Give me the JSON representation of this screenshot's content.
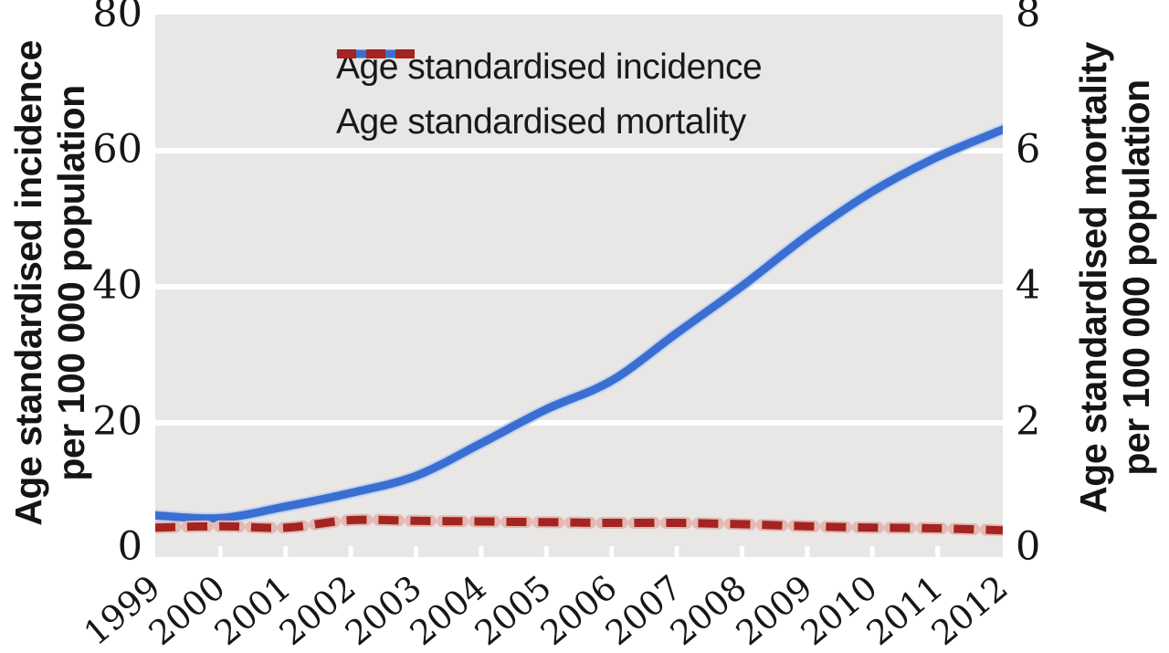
{
  "chart_data": {
    "type": "line",
    "x": [
      1999,
      2000,
      2001,
      2002,
      2003,
      2004,
      2005,
      2006,
      2007,
      2008,
      2009,
      2010,
      2011,
      2012
    ],
    "series": [
      {
        "name": "Age standardised incidence",
        "axis": "left",
        "style": "solid",
        "color": "#3a6fd1",
        "halo_color": "#c3d3f0",
        "values": [
          6.4,
          6.0,
          7.7,
          9.7,
          12.2,
          17.0,
          22.0,
          26.2,
          33.2,
          40.1,
          47.5,
          54.0,
          59.1,
          63.1
        ]
      },
      {
        "name": "Age standardised mortality",
        "axis": "right",
        "style": "dashed",
        "color": "#a32420",
        "halo_color": "#e4b9b4",
        "values": [
          0.46,
          0.48,
          0.46,
          0.57,
          0.56,
          0.55,
          0.54,
          0.53,
          0.53,
          0.51,
          0.48,
          0.46,
          0.45,
          0.42
        ]
      }
    ],
    "left_axis": {
      "title_line1": "Age standardised incidence",
      "title_line2": "per 100 000 population",
      "ticks": [
        0,
        20,
        40,
        60,
        80
      ],
      "range": [
        0,
        80
      ]
    },
    "right_axis": {
      "title_line1": "Age standardised mortality",
      "title_line2": "per 100 000 population",
      "ticks": [
        0,
        2,
        4,
        6,
        8
      ],
      "range": [
        0,
        8
      ]
    },
    "grid": "horizontal white gridlines on gray panel",
    "legend_position": "top-left"
  },
  "colors": {
    "plot_background": "#e8e7e5",
    "gridline": "#ffffff",
    "text": "#1a1a1a"
  }
}
